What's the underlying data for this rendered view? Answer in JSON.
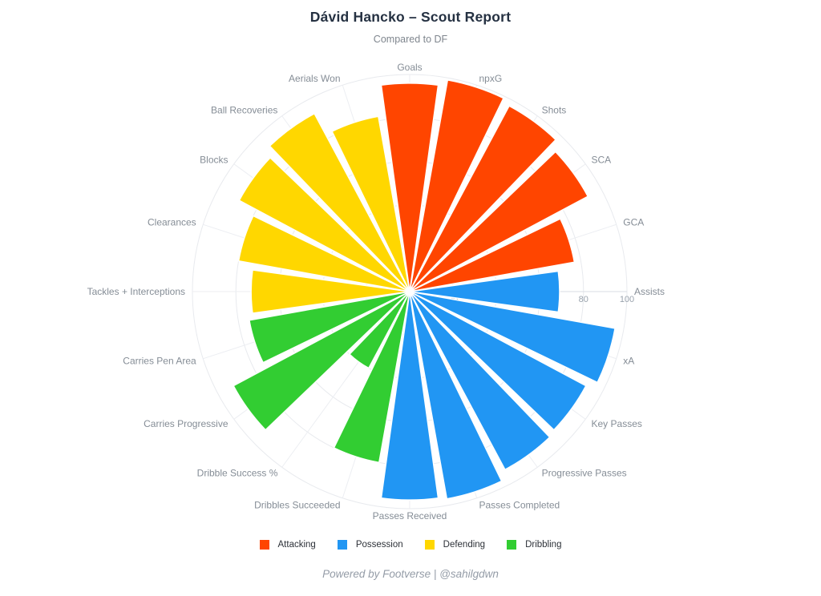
{
  "title": "Dávid Hancko – Scout Report",
  "subtitle": "Compared to DF",
  "footer": "Powered by Footverse | @sahilgdwn",
  "legend": {
    "position": "bottom",
    "items": [
      {
        "label": "Attacking",
        "color": "#FF4500"
      },
      {
        "label": "Possession",
        "color": "#2196F3"
      },
      {
        "label": "Defending",
        "color": "#FFD700"
      },
      {
        "label": "Dribbling",
        "color": "#32CD32"
      }
    ]
  },
  "chart_data": {
    "type": "bar",
    "subtype": "polar-pizza",
    "title": "Dávid Hancko – Scout Report",
    "subtitle": "Compared to DF",
    "start": "top",
    "direction": "clockwise",
    "grid": true,
    "legend_position": "bottom",
    "radial_range": [
      0,
      100
    ],
    "radial_ticks": [
      20,
      40,
      60,
      80,
      100
    ],
    "categories": [
      "Goals",
      "npxG",
      "Shots",
      "SCA",
      "GCA",
      "Assists",
      "xA",
      "Key Passes",
      "Progressive Passes",
      "Passes Completed",
      "Passes Received",
      "Dribbles Succeeded",
      "Dribble Success %",
      "Carries Progressive",
      "Carries Pen Area",
      "Tackles + Interceptions",
      "Clearances",
      "Blocks",
      "Ball Recoveries",
      "Aerials Won"
    ],
    "values": [
      96,
      99,
      97,
      93,
      77,
      69,
      96,
      92,
      93,
      97,
      96,
      80,
      40,
      92,
      75,
      73,
      80,
      89,
      93,
      82
    ],
    "groups": [
      "Attacking",
      "Attacking",
      "Attacking",
      "Attacking",
      "Attacking",
      "Possession",
      "Possession",
      "Possession",
      "Possession",
      "Possession",
      "Possession",
      "Dribbling",
      "Dribbling",
      "Dribbling",
      "Dribbling",
      "Defending",
      "Defending",
      "Defending",
      "Defending",
      "Defending"
    ],
    "group_colors": {
      "Attacking": "#FF4500",
      "Possession": "#2196F3",
      "Defending": "#FFD700",
      "Dribbling": "#32CD32"
    },
    "grid_color": "#e8eaee",
    "spoke_color": "#eceef2",
    "axis_line_color": "#d9dde3",
    "bar_outline_color": "#ffffff"
  }
}
